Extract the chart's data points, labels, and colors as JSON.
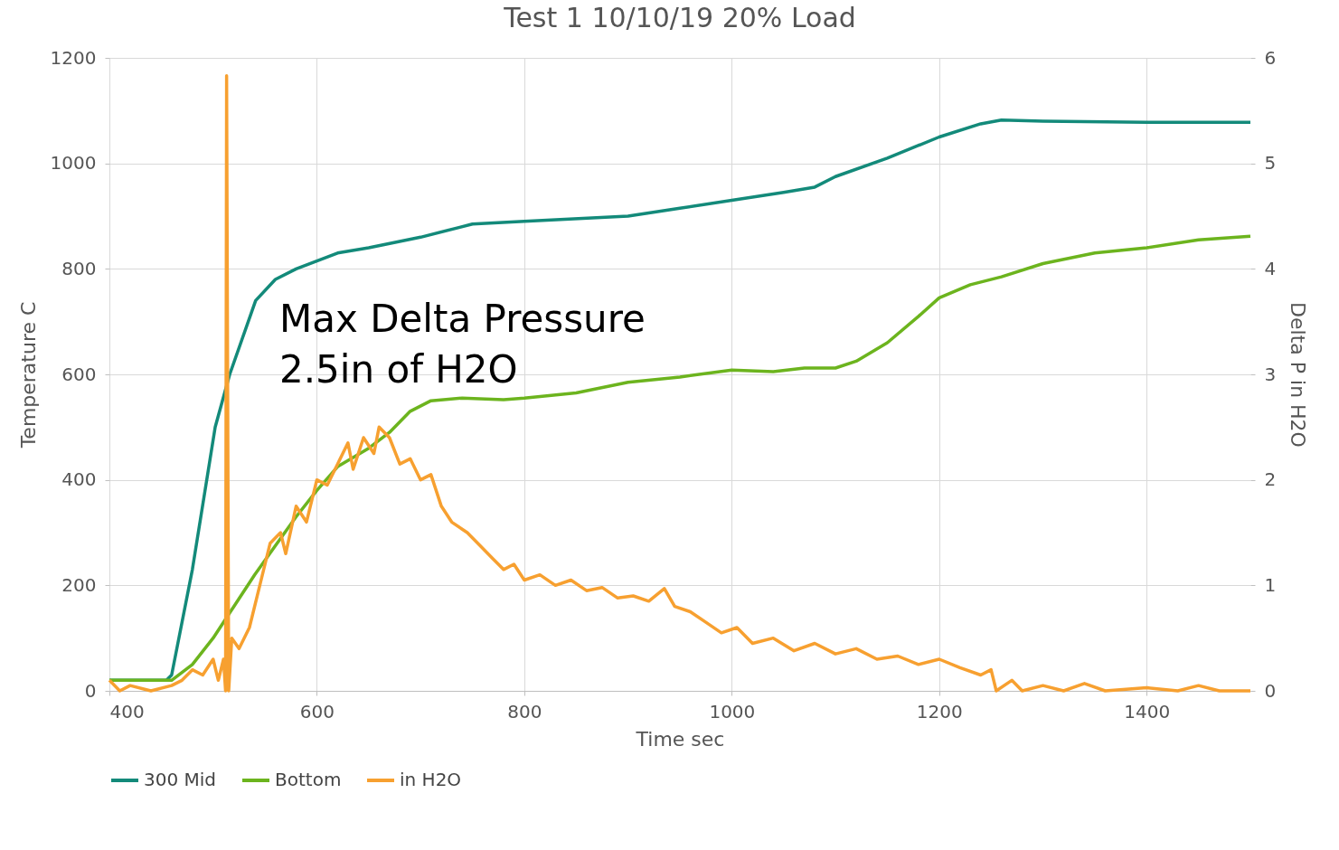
{
  "chart_data": {
    "type": "line",
    "title": "Test 1 10/10/19 20% Load",
    "xlabel": "Time sec",
    "ylabel": "Temperature C",
    "y2label": "Delta P in H2O",
    "annotations": [
      "Max Delta Pressure\n2.5in of H2O"
    ],
    "xlim": [
      400,
      1500
    ],
    "xticks": [
      400,
      600,
      800,
      1000,
      1200,
      1400
    ],
    "ylim": [
      0,
      1200
    ],
    "yticks": [
      0,
      200,
      400,
      600,
      800,
      1000,
      1200
    ],
    "y2lim": [
      0,
      6
    ],
    "y2ticks": [
      0,
      1,
      2,
      3,
      4,
      5,
      6
    ],
    "grid": true,
    "legend": "bottom",
    "marker": "none",
    "line_style": "solid",
    "series": [
      {
        "name": "300 Mid",
        "color": "#138a7a",
        "x": [
          400,
          455,
          460,
          480,
          502,
          516,
          541,
          560,
          580,
          600,
          620,
          650,
          700,
          750,
          800,
          900,
          950,
          1000,
          1050,
          1080,
          1100,
          1150,
          1200,
          1240,
          1260,
          1300,
          1400,
          1500
        ],
        "values": [
          20,
          20,
          30,
          230,
          500,
          600,
          740,
          780,
          800,
          815,
          830,
          840,
          860,
          885,
          890,
          900,
          915,
          930,
          945,
          955,
          975,
          1010,
          1050,
          1075,
          1082,
          1080,
          1078,
          1078
        ]
      },
      {
        "name": "Bottom",
        "color": "#6cb41e",
        "x": [
          400,
          460,
          480,
          500,
          520,
          540,
          560,
          580,
          600,
          620,
          650,
          670,
          690,
          710,
          740,
          780,
          800,
          850,
          900,
          950,
          1000,
          1040,
          1070,
          1100,
          1120,
          1150,
          1180,
          1200,
          1230,
          1260,
          1300,
          1350,
          1400,
          1450,
          1500
        ],
        "values": [
          20,
          20,
          50,
          100,
          160,
          220,
          275,
          330,
          380,
          425,
          460,
          490,
          530,
          550,
          555,
          552,
          555,
          565,
          585,
          595,
          608,
          605,
          612,
          612,
          625,
          660,
          710,
          745,
          770,
          785,
          810,
          830,
          840,
          855,
          862
        ]
      },
      {
        "name": "in H2O",
        "color": "#f7a030",
        "axis": "y2",
        "x": [
          400,
          410,
          420,
          440,
          460,
          470,
          480,
          490,
          500,
          505,
          510,
          512,
          513,
          515,
          518,
          525,
          535,
          545,
          555,
          565,
          570,
          580,
          590,
          600,
          610,
          620,
          630,
          635,
          645,
          655,
          660,
          670,
          680,
          690,
          700,
          710,
          720,
          730,
          745,
          760,
          770,
          780,
          790,
          800,
          815,
          830,
          845,
          860,
          875,
          890,
          905,
          920,
          935,
          945,
          960,
          975,
          990,
          1005,
          1020,
          1040,
          1060,
          1080,
          1100,
          1120,
          1140,
          1160,
          1180,
          1200,
          1220,
          1240,
          1250,
          1255,
          1270,
          1280,
          1300,
          1320,
          1340,
          1360,
          1400,
          1430,
          1450,
          1470,
          1500
        ],
        "values": [
          0.1,
          0,
          0.05,
          0,
          0.05,
          0.1,
          0.2,
          0.15,
          0.3,
          0.1,
          0.3,
          0,
          5.83,
          0,
          0.5,
          0.4,
          0.6,
          1.0,
          1.4,
          1.5,
          1.3,
          1.75,
          1.6,
          2.0,
          1.95,
          2.15,
          2.35,
          2.1,
          2.4,
          2.25,
          2.5,
          2.4,
          2.15,
          2.2,
          2.0,
          2.05,
          1.75,
          1.6,
          1.5,
          1.35,
          1.25,
          1.15,
          1.2,
          1.05,
          1.1,
          1.0,
          1.05,
          0.95,
          0.98,
          0.88,
          0.9,
          0.85,
          0.97,
          0.8,
          0.75,
          0.65,
          0.55,
          0.6,
          0.45,
          0.5,
          0.38,
          0.45,
          0.35,
          0.4,
          0.3,
          0.33,
          0.25,
          0.3,
          0.22,
          0.15,
          0.2,
          0,
          0.1,
          0,
          0.05,
          0,
          0.07,
          0,
          0.03,
          0,
          0.05,
          0,
          0
        ]
      }
    ]
  }
}
